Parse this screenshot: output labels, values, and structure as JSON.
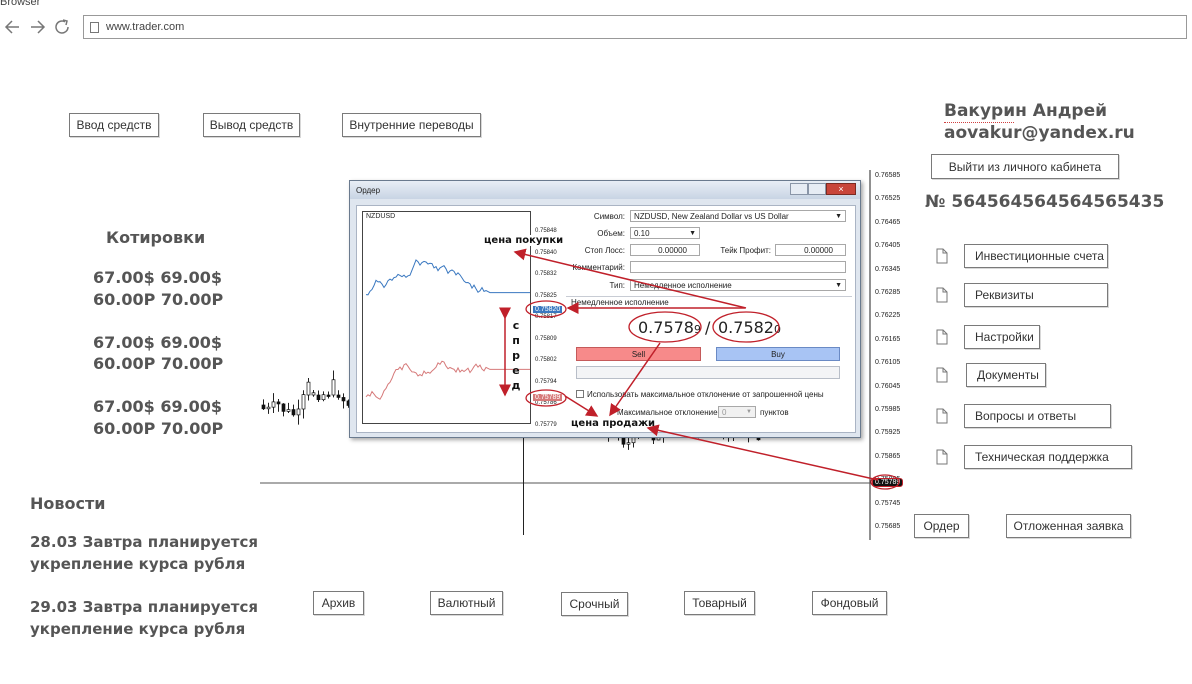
{
  "browser": {
    "label": "Browser",
    "url": "www.trader.com"
  },
  "top_buttons": [
    {
      "label": "Ввод средств"
    },
    {
      "label": "Вывод средств"
    },
    {
      "label": "Внутренние переводы"
    }
  ],
  "user": {
    "name": "Вакурин Андрей",
    "email": "aovakur@yandex.ru",
    "logout_label": "Выйти из личного кабинета",
    "account": "№ 564564564564565435"
  },
  "side_menu": [
    {
      "label": "Инвестиционные счета",
      "icon": "document-icon"
    },
    {
      "label": "Реквизиты",
      "icon": "document-icon"
    },
    {
      "label": "Настройки",
      "icon": "document-icon"
    },
    {
      "label": "Документы",
      "icon": "document-icon"
    },
    {
      "label": "Вопросы и ответы",
      "icon": "document-icon"
    },
    {
      "label": "Техническая поддержка",
      "icon": "document-icon"
    }
  ],
  "quotes": {
    "title": "Котировки",
    "rows": [
      {
        "usd": "67.00$  69.00$",
        "rub": "60.00Р  70.00Р"
      },
      {
        "usd": "67.00$  69.00$",
        "rub": "60.00Р  70.00Р"
      },
      {
        "usd": "67.00$  69.00$",
        "rub": "60.00Р  70.00Р"
      }
    ]
  },
  "news": {
    "title": "Новости",
    "items": [
      {
        "line1": "28.03 Завтра планируется",
        "line2": "укрепление курса рубля"
      },
      {
        "line1": "29.03 Завтра планируется",
        "line2": "укрепление курса рубля"
      }
    ]
  },
  "order_buttons": {
    "order": "Ордер",
    "pending": "Отложенная заявка"
  },
  "market_tabs": [
    {
      "label": "Архив"
    },
    {
      "label": "Валютный"
    },
    {
      "label": "Срочный"
    },
    {
      "label": "Товарный"
    },
    {
      "label": "Фондовый"
    }
  ],
  "main_chart": {
    "price_ticks": [
      "0.76585",
      "0.76525",
      "0.76465",
      "0.76405",
      "0.76345",
      "0.76285",
      "0.76225",
      "0.76165",
      "0.76105",
      "0.76045",
      "0.75985",
      "0.75925",
      "0.75865",
      "0.75805",
      "0.75745",
      "0.75685"
    ],
    "current_price": "0.75789"
  },
  "order_dialog": {
    "title": "Ордер",
    "mini_chart_symbol": "NZDUSD",
    "mini_ticks": [
      "0.75848",
      "0.75840",
      "0.75832",
      "0.75825",
      "0.75817",
      "0.75809",
      "0.75802",
      "0.75794",
      "0.75786",
      "0.75779"
    ],
    "ask_marker": "0.75820",
    "bid_marker": "0.75789",
    "symbol_label": "Символ:",
    "symbol_value": "NZDUSD, New Zealand Dollar vs US Dollar",
    "volume_label": "Объем:",
    "volume_value": "0.10",
    "stoploss_label": "Стоп Лосс:",
    "stoploss_value": "0.00000",
    "takeprofit_label": "Тейк Профит:",
    "takeprofit_value": "0.00000",
    "comment_label": "Комментарий:",
    "comment_value": "",
    "type_label": "Тип:",
    "type_value": "Немедленное исполнение",
    "section_label": "Немедленное исполнение",
    "bid_main": "0.7578",
    "bid_small": "9",
    "separator": "/",
    "ask_main": "0.7582",
    "ask_small": "0",
    "sell_label": "Sell",
    "buy_label": "Buy",
    "deviation_check": "Использовать максимальное отклонение от запрошенной цены",
    "deviation_label": "Максимальное отклонение:",
    "deviation_value": "0",
    "deviation_unit": "пунктов"
  },
  "annotations": {
    "buy_price": "цена покупки",
    "sell_price": "цена продажи",
    "spread": "спред"
  },
  "colors": {
    "sell": "#f78a8a",
    "buy": "#a8c4f4",
    "arrow": "#c0202a",
    "ask_line": "#3a78c0",
    "bid_line": "#d67a7a"
  }
}
